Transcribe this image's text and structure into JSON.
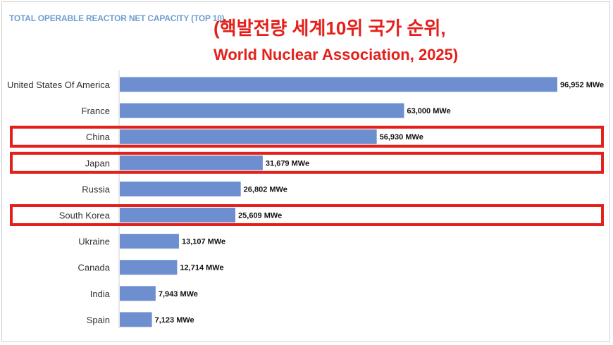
{
  "header": {
    "chart_title": "TOTAL OPERABLE REACTOR NET CAPACITY (TOP 10)",
    "annotation_line1": "(핵발전량 세계10위 국가 순위,",
    "annotation_line2": "World Nuclear Association, 2025)"
  },
  "colors": {
    "bar": "#6e8fcf",
    "highlight_box": "#e3201b",
    "title": "#6f9fd0"
  },
  "chart_data": {
    "type": "bar",
    "orientation": "horizontal",
    "title": "TOTAL OPERABLE REACTOR NET CAPACITY (TOP 10)",
    "xlabel": "",
    "ylabel": "",
    "unit": "MWe",
    "xlim": [
      0,
      96952
    ],
    "grid": false,
    "categories": [
      "United States Of America",
      "France",
      "China",
      "Japan",
      "Russia",
      "South Korea",
      "Ukraine",
      "Canada",
      "India",
      "Spain"
    ],
    "values": [
      96952,
      63000,
      56930,
      31679,
      26802,
      25609,
      13107,
      12714,
      7943,
      7123
    ],
    "value_labels": [
      "96,952 MWe",
      "63,000 MWe",
      "56,930 MWe",
      "31,679 MWe",
      "26,802 MWe",
      "25,609 MWe",
      "13,107 MWe",
      "12,714 MWe",
      "7,943 MWe",
      "7,123 MWe"
    ],
    "highlighted": [
      "China",
      "Japan",
      "South Korea"
    ]
  }
}
